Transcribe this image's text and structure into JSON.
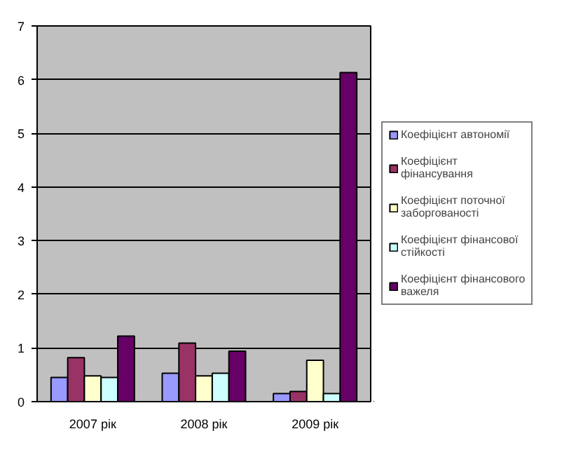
{
  "chart_data": {
    "type": "bar",
    "categories": [
      "2007 рік",
      "2008 рік",
      "2009 рік"
    ],
    "series": [
      {
        "name": "Коефіцієнт автономії",
        "color": "#9999ff",
        "values": [
          0.45,
          0.53,
          0.15
        ]
      },
      {
        "name": "Коефіцієнт фінансування",
        "color": "#993366",
        "values": [
          0.82,
          1.09,
          0.19
        ]
      },
      {
        "name": "Коефіцієнт поточної заборгованості",
        "color": "#ffffcc",
        "values": [
          0.48,
          0.48,
          0.77
        ]
      },
      {
        "name": "Коефіцієнт фінансової стійкості",
        "color": "#ccffff",
        "values": [
          0.45,
          0.53,
          0.15
        ]
      },
      {
        "name": "Коефіцієнт фінансового важеля",
        "color": "#660066",
        "values": [
          1.22,
          0.94,
          6.13
        ]
      }
    ],
    "ylim": [
      0,
      7
    ],
    "yticks": [
      0,
      1,
      2,
      3,
      4,
      5,
      6,
      7
    ],
    "grid": "y",
    "legend": "right"
  }
}
